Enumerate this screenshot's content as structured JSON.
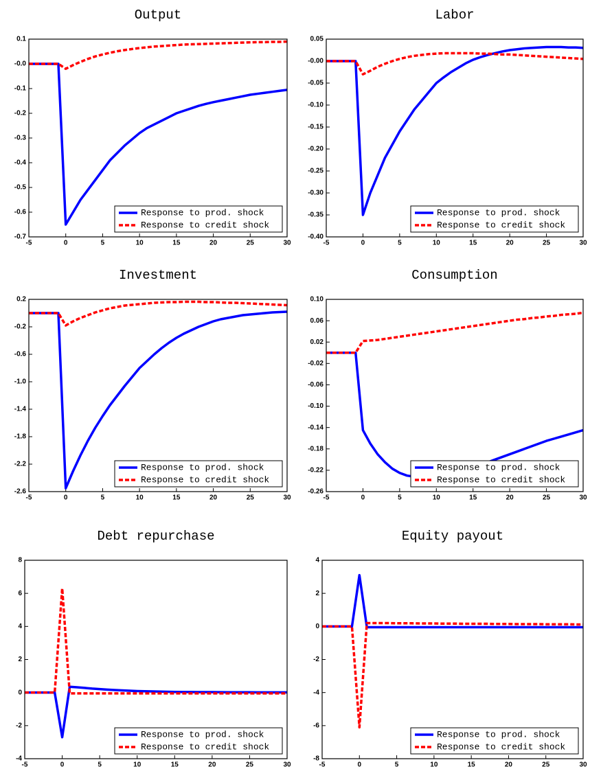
{
  "chart_data": [
    {
      "type": "line",
      "title": "Output",
      "x": [
        -5,
        -4,
        -3,
        -2,
        -1,
        0,
        1,
        2,
        3,
        4,
        5,
        6,
        7,
        8,
        9,
        10,
        11,
        12,
        13,
        14,
        15,
        16,
        17,
        18,
        19,
        20,
        21,
        22,
        23,
        24,
        25,
        26,
        27,
        28,
        29,
        30
      ],
      "series": [
        {
          "name": "Response to prod. shock",
          "color": "#0000ff",
          "linestyle": "solid",
          "values": [
            0,
            0,
            0,
            0,
            0,
            -0.65,
            -0.6,
            -0.55,
            -0.51,
            -0.47,
            -0.43,
            -0.39,
            -0.36,
            -0.33,
            -0.305,
            -0.28,
            -0.26,
            -0.245,
            -0.23,
            -0.215,
            -0.2,
            -0.19,
            -0.18,
            -0.17,
            -0.162,
            -0.155,
            -0.149,
            -0.143,
            -0.137,
            -0.131,
            -0.125,
            -0.121,
            -0.117,
            -0.113,
            -0.109,
            -0.105
          ]
        },
        {
          "name": "Response to credit shock",
          "color": "#ff0000",
          "linestyle": "dashed",
          "values": [
            0,
            0,
            0,
            0,
            0,
            -0.02,
            -0.005,
            0.008,
            0.02,
            0.03,
            0.038,
            0.045,
            0.051,
            0.056,
            0.06,
            0.064,
            0.067,
            0.07,
            0.072,
            0.074,
            0.076,
            0.078,
            0.079,
            0.08,
            0.081,
            0.082,
            0.083,
            0.084,
            0.085,
            0.086,
            0.087,
            0.088,
            0.088,
            0.089,
            0.089,
            0.09
          ]
        }
      ],
      "xlim": [
        -5,
        30
      ],
      "xticks": [
        -5,
        0,
        5,
        10,
        15,
        20,
        25,
        30
      ],
      "ylim": [
        -0.7,
        0.1
      ],
      "yticks": [
        -0.7,
        -0.6,
        -0.5,
        -0.4,
        -0.3,
        -0.2,
        -0.1,
        {
          "value": 0,
          "label": "-0.0"
        },
        0.1
      ],
      "legend": "lower right",
      "grid": false
    },
    {
      "type": "line",
      "title": "Labor",
      "x": [
        -5,
        -4,
        -3,
        -2,
        -1,
        0,
        1,
        2,
        3,
        4,
        5,
        6,
        7,
        8,
        9,
        10,
        11,
        12,
        13,
        14,
        15,
        16,
        17,
        18,
        19,
        20,
        21,
        22,
        23,
        24,
        25,
        26,
        27,
        28,
        29,
        30
      ],
      "series": [
        {
          "name": "Response to prod. shock",
          "color": "#0000ff",
          "linestyle": "solid",
          "values": [
            0,
            0,
            0,
            0,
            0,
            -0.35,
            -0.3,
            -0.26,
            -0.22,
            -0.19,
            -0.16,
            -0.135,
            -0.11,
            -0.09,
            -0.07,
            -0.05,
            -0.037,
            -0.025,
            -0.015,
            -0.005,
            0.003,
            0.009,
            0.014,
            0.018,
            0.022,
            0.025,
            0.027,
            0.029,
            0.03,
            0.031,
            0.032,
            0.032,
            0.032,
            0.031,
            0.031,
            0.03
          ]
        },
        {
          "name": "Response to credit shock",
          "color": "#ff0000",
          "linestyle": "dashed",
          "values": [
            0,
            0,
            0,
            0,
            0,
            -0.03,
            -0.022,
            -0.013,
            -0.006,
            0,
            0.005,
            0.009,
            0.012,
            0.014,
            0.016,
            0.017,
            0.018,
            0.018,
            0.018,
            0.018,
            0.018,
            0.017,
            0.017,
            0.016,
            0.015,
            0.015,
            0.014,
            0.013,
            0.012,
            0.011,
            0.01,
            0.009,
            0.008,
            0.007,
            0.006,
            0.005
          ]
        }
      ],
      "xlim": [
        -5,
        30
      ],
      "xticks": [
        -5,
        0,
        5,
        10,
        15,
        20,
        25,
        30
      ],
      "ylim": [
        -0.4,
        0.05
      ],
      "yticks": [
        {
          "value": -0.4,
          "label": "-0.40"
        },
        -0.35,
        {
          "value": -0.3,
          "label": "-0.30"
        },
        -0.25,
        {
          "value": -0.2,
          "label": "-0.20"
        },
        -0.15,
        {
          "value": -0.1,
          "label": "-0.10"
        },
        -0.05,
        {
          "value": 0,
          "label": "-0.00"
        },
        0.05
      ],
      "legend": "lower right",
      "grid": false
    },
    {
      "type": "line",
      "title": "Investment",
      "x": [
        -5,
        -4,
        -3,
        -2,
        -1,
        0,
        1,
        2,
        3,
        4,
        5,
        6,
        7,
        8,
        9,
        10,
        11,
        12,
        13,
        14,
        15,
        16,
        17,
        18,
        19,
        20,
        21,
        22,
        23,
        24,
        25,
        26,
        27,
        28,
        29,
        30
      ],
      "series": [
        {
          "name": "Response to prod. shock",
          "color": "#0000ff",
          "linestyle": "solid",
          "values": [
            0,
            0,
            0,
            0,
            0,
            -2.55,
            -2.3,
            -2.07,
            -1.86,
            -1.67,
            -1.5,
            -1.34,
            -1.2,
            -1.06,
            -0.93,
            -0.8,
            -0.7,
            -0.6,
            -0.51,
            -0.43,
            -0.36,
            -0.3,
            -0.25,
            -0.2,
            -0.16,
            -0.12,
            -0.09,
            -0.07,
            -0.05,
            -0.03,
            -0.02,
            -0.01,
            0,
            0.01,
            0.015,
            0.02
          ]
        },
        {
          "name": "Response to credit shock",
          "color": "#ff0000",
          "linestyle": "dashed",
          "values": [
            0,
            0,
            0,
            0,
            0,
            -0.18,
            -0.12,
            -0.07,
            -0.03,
            0.01,
            0.04,
            0.07,
            0.09,
            0.11,
            0.12,
            0.13,
            0.14,
            0.15,
            0.155,
            0.16,
            0.16,
            0.165,
            0.165,
            0.165,
            0.16,
            0.16,
            0.155,
            0.15,
            0.15,
            0.145,
            0.14,
            0.135,
            0.13,
            0.125,
            0.12,
            0.115
          ]
        }
      ],
      "xlim": [
        -5,
        30
      ],
      "xticks": [
        -5,
        0,
        5,
        10,
        15,
        20,
        25,
        30
      ],
      "ylim": [
        -2.6,
        0.2
      ],
      "yticks": [
        -2.6,
        -2.2,
        -1.8,
        -1.4,
        {
          "value": -1,
          "label": "-1.0"
        },
        -0.6,
        -0.2,
        0.2
      ],
      "legend": "lower right",
      "grid": false
    },
    {
      "type": "line",
      "title": "Consumption",
      "x": [
        -5,
        -4,
        -3,
        -2,
        -1,
        0,
        1,
        2,
        3,
        4,
        5,
        6,
        7,
        8,
        9,
        10,
        11,
        12,
        13,
        14,
        15,
        16,
        17,
        18,
        19,
        20,
        21,
        22,
        23,
        24,
        25,
        26,
        27,
        28,
        29,
        30
      ],
      "series": [
        {
          "name": "Response to prod. shock",
          "color": "#0000ff",
          "linestyle": "solid",
          "values": [
            0,
            0,
            0,
            0,
            0,
            -0.145,
            -0.17,
            -0.19,
            -0.205,
            -0.217,
            -0.225,
            -0.23,
            -0.232,
            -0.233,
            -0.232,
            -0.23,
            -0.228,
            -0.225,
            -0.222,
            -0.218,
            -0.214,
            -0.21,
            -0.205,
            -0.2,
            -0.195,
            -0.19,
            -0.185,
            -0.18,
            -0.175,
            -0.17,
            -0.165,
            -0.161,
            -0.157,
            -0.153,
            -0.149,
            -0.145
          ]
        },
        {
          "name": "Response to credit shock",
          "color": "#ff0000",
          "linestyle": "dashed",
          "values": [
            0,
            0,
            0,
            0,
            0,
            0.022,
            0.023,
            0.024,
            0.026,
            0.028,
            0.03,
            0.032,
            0.034,
            0.036,
            0.038,
            0.04,
            0.042,
            0.044,
            0.046,
            0.048,
            0.05,
            0.052,
            0.054,
            0.056,
            0.058,
            0.06,
            0.062,
            0.063,
            0.065,
            0.066,
            0.068,
            0.069,
            0.071,
            0.072,
            0.073,
            0.075
          ]
        }
      ],
      "xlim": [
        -5,
        30
      ],
      "xticks": [
        -5,
        0,
        5,
        10,
        15,
        20,
        25,
        30
      ],
      "ylim": [
        -0.26,
        0.1
      ],
      "yticks": [
        -0.26,
        -0.22,
        -0.18,
        -0.14,
        {
          "value": -0.1,
          "label": "-0.10"
        },
        -0.06,
        -0.02,
        0.02,
        0.06,
        {
          "value": 0.1,
          "label": "0.10"
        }
      ],
      "legend": "lower right",
      "grid": false
    },
    {
      "type": "line",
      "title": "Debt repurchase",
      "x": [
        -5,
        -4,
        -3,
        -2,
        -1,
        0,
        1,
        2,
        3,
        4,
        5,
        6,
        7,
        8,
        9,
        10,
        11,
        12,
        13,
        14,
        15,
        16,
        17,
        18,
        19,
        20,
        21,
        22,
        23,
        24,
        25,
        26,
        27,
        28,
        29,
        30
      ],
      "series": [
        {
          "name": "Response to prod. shock",
          "color": "#0000ff",
          "linestyle": "solid",
          "values": [
            0,
            0,
            0,
            0,
            0,
            -2.7,
            0.35,
            0.32,
            0.28,
            0.24,
            0.21,
            0.18,
            0.15,
            0.13,
            0.11,
            0.09,
            0.08,
            0.07,
            0.06,
            0.05,
            0.04,
            0.035,
            0.033,
            0.03,
            0.028,
            0.025,
            0.023,
            0.02,
            0.018,
            0.016,
            0.015,
            0.013,
            0.012,
            0.011,
            0.01,
            0.01
          ]
        },
        {
          "name": "Response to credit shock",
          "color": "#ff0000",
          "linestyle": "dashed",
          "values": [
            0,
            0,
            0,
            0,
            0,
            6.3,
            -0.05,
            -0.05,
            -0.05,
            -0.05,
            -0.05,
            -0.05,
            -0.05,
            -0.05,
            -0.05,
            -0.05,
            -0.05,
            -0.05,
            -0.05,
            -0.05,
            -0.05,
            -0.05,
            -0.05,
            -0.05,
            -0.05,
            -0.05,
            -0.05,
            -0.05,
            -0.05,
            -0.05,
            -0.05,
            -0.05,
            -0.05,
            -0.05,
            -0.05,
            -0.05
          ]
        }
      ],
      "xlim": [
        -5,
        30
      ],
      "xticks": [
        -5,
        0,
        5,
        10,
        15,
        20,
        25,
        30
      ],
      "ylim": [
        -4,
        8
      ],
      "yticks": [
        -4,
        -2,
        0,
        2,
        4,
        6,
        8
      ],
      "legend": "lower right",
      "grid": false
    },
    {
      "type": "line",
      "title": "Equity payout",
      "x": [
        -5,
        -4,
        -3,
        -2,
        -1,
        0,
        1,
        2,
        3,
        4,
        5,
        6,
        7,
        8,
        9,
        10,
        11,
        12,
        13,
        14,
        15,
        16,
        17,
        18,
        19,
        20,
        21,
        22,
        23,
        24,
        25,
        26,
        27,
        28,
        29,
        30
      ],
      "series": [
        {
          "name": "Response to prod. shock",
          "color": "#0000ff",
          "linestyle": "solid",
          "values": [
            0,
            0,
            0,
            0,
            0,
            3.1,
            -0.05,
            -0.05,
            -0.05,
            -0.05,
            -0.05,
            -0.05,
            -0.05,
            -0.05,
            -0.05,
            -0.05,
            -0.05,
            -0.05,
            -0.05,
            -0.05,
            -0.05,
            -0.05,
            -0.05,
            -0.05,
            -0.05,
            -0.05,
            -0.05,
            -0.05,
            -0.05,
            -0.05,
            -0.05,
            -0.05,
            -0.05,
            -0.05,
            -0.05,
            -0.05
          ]
        },
        {
          "name": "Response to credit shock",
          "color": "#ff0000",
          "linestyle": "dashed",
          "values": [
            0,
            0,
            0,
            0,
            0,
            -6.1,
            0.2,
            0.2,
            0.2,
            0.2,
            0.19,
            0.19,
            0.19,
            0.18,
            0.18,
            0.18,
            0.17,
            0.17,
            0.17,
            0.16,
            0.16,
            0.16,
            0.16,
            0.15,
            0.15,
            0.15,
            0.14,
            0.14,
            0.14,
            0.14,
            0.13,
            0.13,
            0.13,
            0.13,
            0.12,
            0.12
          ]
        }
      ],
      "xlim": [
        -5,
        30
      ],
      "xticks": [
        -5,
        0,
        5,
        10,
        15,
        20,
        25,
        30
      ],
      "ylim": [
        -8,
        4
      ],
      "yticks": [
        -8,
        -6,
        -4,
        -2,
        0,
        2,
        4
      ],
      "legend": "lower right",
      "grid": false
    }
  ]
}
